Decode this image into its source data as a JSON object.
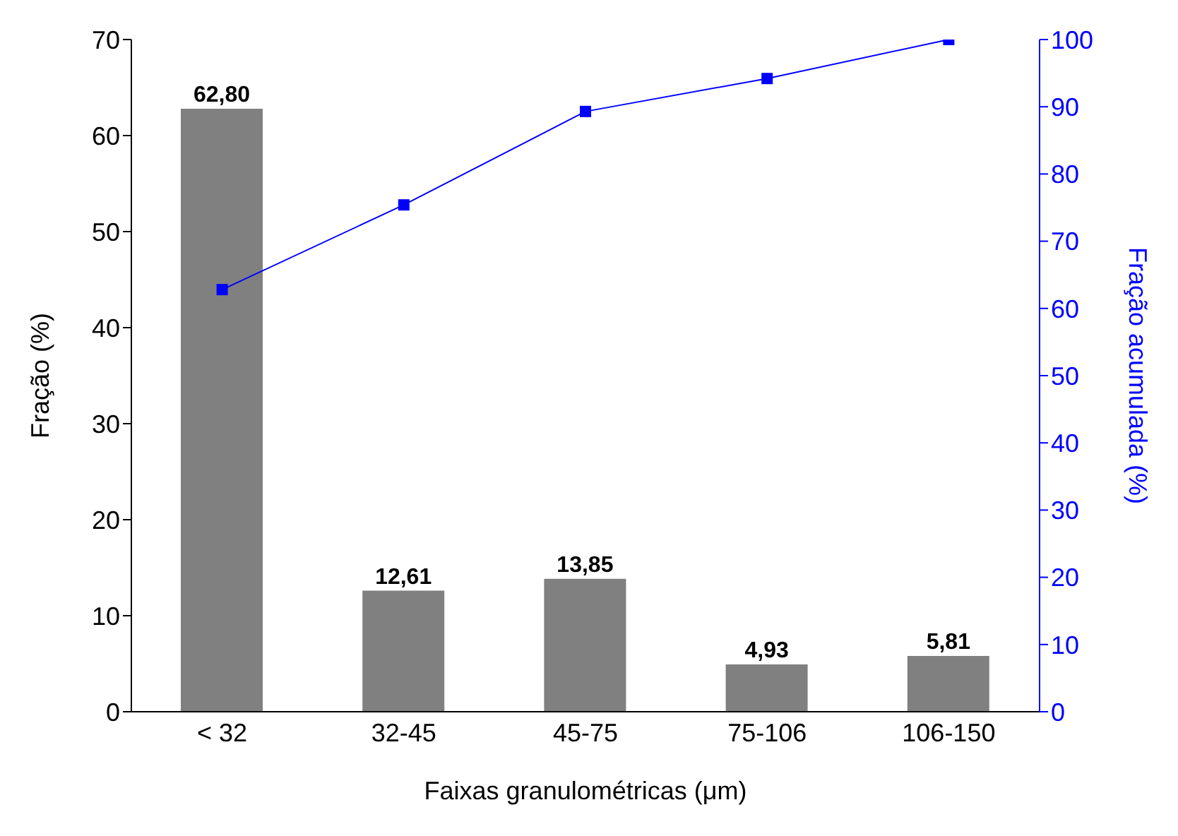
{
  "chart_data": {
    "type": "bar",
    "xlabel": "Faixas granulométricas (μm)",
    "ylabel": "Fração (%)",
    "y2label": "Fração acumulada (%)",
    "categories": [
      "< 32",
      "32-45",
      "45-75",
      "75-106",
      "106-150"
    ],
    "series": [
      {
        "color": "#808080",
        "values": [
          62.8,
          12.61,
          13.85,
          4.93,
          5.81
        ],
        "value_labels": [
          "62,80",
          "12,61",
          "13,85",
          "4,93",
          "5,81"
        ]
      },
      {
        "type": "line",
        "axis": "y2",
        "color": "#0000ff",
        "values": [
          62.8,
          75.4,
          89.3,
          94.2,
          100
        ],
        "marker": "square"
      }
    ],
    "ylim": [
      0,
      70
    ],
    "yticks": [
      0,
      10,
      20,
      30,
      40,
      50,
      60,
      70
    ],
    "y2lim": [
      0,
      100
    ],
    "y2ticks": [
      0,
      10,
      20,
      30,
      40,
      50,
      60,
      70,
      80,
      90,
      100
    ]
  }
}
